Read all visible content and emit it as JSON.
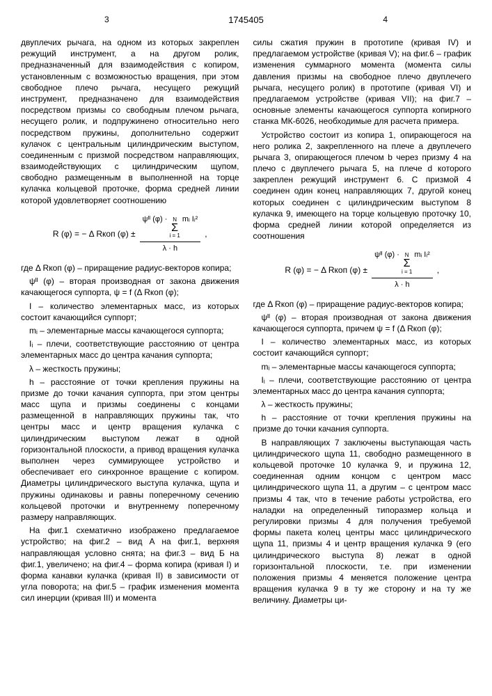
{
  "header": {
    "page_left": "3",
    "patent_number": "1745405",
    "page_right": "4"
  },
  "left_column": {
    "p1": "двуплечих рычага, на одном из которых закреплен режущий инструмент, а на другом ролик, предназначенный для взаимодействия с копиром, установленным с возможностью вращения, при этом свободное плечо рычага, несущего режущий инструмент, предназначено для взаимодействия посредством призмы со свободным плечом рычага, несущего ролик, и подпружинено относительно него посредством пружины, дополнительно содержит кулачок с центральным цилиндрическим выступом, соединенным с призмой посредством направляющих, взаимодействующих с цилиндрическим щупом, свободно размещенным в выполненной на торце кулачка кольцевой проточке, форма средней линии которой удовлетворяет соотношению",
    "formula_prefix": "R (φ) = − Δ Rкоп (φ) ±",
    "formula_num_left": "ψᴵᴵ (φ) ·",
    "formula_num_sum_top": "N",
    "formula_num_sum_bottom": "i = 1",
    "formula_num_right": "mᵢ Iᵢ²",
    "formula_den": "λ · h",
    "where_label": "где",
    "d1": "Δ Rкоп (φ) – приращение радиус-векторов копира;",
    "d2": "ψᴵᴵ (φ) – вторая производная от закона движения качающегося суппорта, ψ = f (Δ Rкоп (φ);",
    "d3": "I – количество элементарных масс, из которых состоит качающийся суппорт;",
    "d4": "mᵢ – элементарные массы качающегося суппорта;",
    "d5": "Iᵢ – плечи, соответствующие расстоянию от центра элементарных масс до центра качания суппорта;",
    "d6": "λ – жесткость пружины;",
    "d7": "h – расстояние от точки крепления пружины на призме до точки качания суппорта, при этом центры масс щупа и призмы соединены с концами размещенной в направляющих пружины так, что центры масс и центр вращения кулачка с цилиндрическим выступом лежат в одной горизонтальной плоскости, а привод вращения кулачка выполнен через суммирующее устройство и обеспечивает его синхронное вращение с копиром. Диаметры цилиндрического выступа кулачка, щупа и пружины одинаковы и равны поперечному сечению кольцевой проточки и внутреннему поперечному размеру направляющих.",
    "p2": "На фиг.1 схематично изображено предлагаемое устройство; на фиг.2 – вид А на фиг.1, верхняя направляющая условно снята; на фиг.3 – вид Б на фиг.1, увеличено; на фиг.4 – форма копира (кривая I) и форма канавки кулачка (кривая II) в зависимости от угла поворота; на фиг.5 – график изменения момента сил инерции (кривая III) и момента"
  },
  "right_column": {
    "p1": "силы сжатия пружин в прототипе (кривая IV) и предлагаемом устройстве (кривая V); на фиг.6 – график изменения суммарного момента (момента силы давления призмы на свободное плечо двуплечего рычага, несущего ролик) в прототипе (кривая VI) и предлагаемом устройстве (кривая VII); на фиг.7 – основные элементы качающегося суппорта копирного станка МК-6026, необходимые для расчета примера.",
    "p2": "Устройство состоит из копира 1, опирающегося на него ролика 2, закрепленного на плече a двуплечего рычага 3, опирающегося плечом b через призму 4 на плечо c двуплечего рычага 5, на плече d которого закреплен режущий инструмент 6. С призмой 4 соединен один конец направляющих 7, другой конец которых соединен с цилиндрическим выступом 8 кулачка 9, имеющего на торце кольцевую проточку 10, форма средней линии которой определяется из соотношения",
    "formula_prefix": "R (φ) = − Δ Rкоп (φ) ±",
    "formula_num_left": "ψᴵᴵ (φ) ·",
    "formula_num_sum_top": "N",
    "formula_num_sum_bottom": "i = 1",
    "formula_num_right": "mᵢ Iᵢ²",
    "formula_den": "λ · h",
    "where_label": "где",
    "d1": "Δ Rкоп (φ) – приращение радиус-векторов копира;",
    "d2": "ψᴵᴵ (φ) – вторая производная от закона движения качающегося суппорта, причем ψ = f (Δ Rкоп (φ);",
    "d3": "I – количество элементарных масс, из которых состоит качающийся суппорт;",
    "d4": "mᵢ – элементарные массы качающегося суппорта;",
    "d5": "Iᵢ – плечи, соответствующие расстоянию от центра элементарных масс до центра качания суппорта;",
    "d6": "λ – жесткость пружины;",
    "d7": "h – расстояние от точки крепления пружины на призме до точки качания суппорта.",
    "p3": "В направляющих 7 заключены выступающая часть цилиндрического щупа 11, свободно размещенного в кольцевой проточке 10 кулачка 9, и пружина 12, соединенная одним концом с центром масс цилиндрического щупа 11, а другим – с центром масс призмы 4 так, что в течение работы устройства, его наладки на определенный типоразмер кольца и регулировки призмы 4 для получения требуемой формы пакета колец центры масс цилиндрического щупа 11, призмы 4 и центр вращения кулачка 9 (его цилиндрического выступа 8) лежат в одной горизонтальной плоскости, т.е. при изменении положения призмы 4 меняется положение центра вращения кулачка 9 в ту же сторону и на ту же величину. Диаметры ци-"
  }
}
